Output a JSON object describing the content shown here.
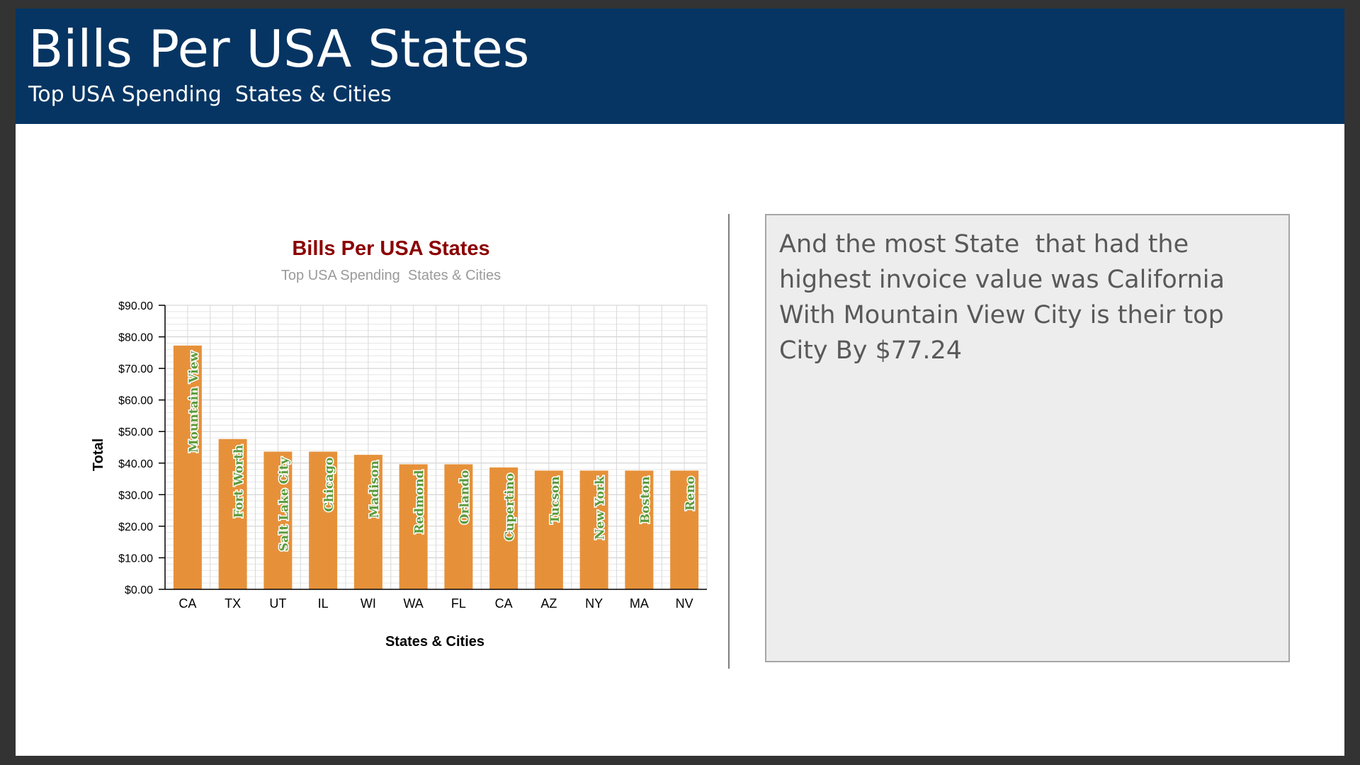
{
  "slide": {
    "title": "Bills Per USA States",
    "subtitle": "Top USA Spending  States & Cities"
  },
  "textbox": {
    "text": "And the most State  that had the highest invoice value was California With Mountain View City is their top City By $77.24"
  },
  "colors": {
    "header_bg": "#063563",
    "bar": "#E6913A",
    "city_label": "#5B9B3B",
    "chart_title": "#8B0000",
    "chart_subtitle": "#9A9A9A"
  },
  "chart_data": {
    "type": "bar",
    "title": "Bills Per USA States",
    "subtitle": "Top USA Spending  States & Cities",
    "xlabel": "States & Cities",
    "ylabel": "Total",
    "categories": [
      "CA",
      "TX",
      "UT",
      "IL",
      "WI",
      "WA",
      "FL",
      "CA",
      "AZ",
      "NY",
      "MA",
      "NV"
    ],
    "city_labels": [
      "Mountain View",
      "Fort Worth",
      "Salt Lake City",
      "Chicago",
      "Madison",
      "Redmond",
      "Orlando",
      "Cupertino",
      "Tucson",
      "New York",
      "Boston",
      "Reno"
    ],
    "values": [
      77.24,
      47.62,
      43.62,
      43.62,
      42.62,
      39.62,
      39.62,
      38.62,
      37.62,
      37.62,
      37.62,
      37.62
    ],
    "ylim": [
      0,
      90
    ],
    "ytick_labels": [
      "$0.00",
      "$10.00",
      "$20.00",
      "$30.00",
      "$40.00",
      "$50.00",
      "$60.00",
      "$70.00",
      "$80.00",
      "$90.00"
    ],
    "grid": true
  }
}
